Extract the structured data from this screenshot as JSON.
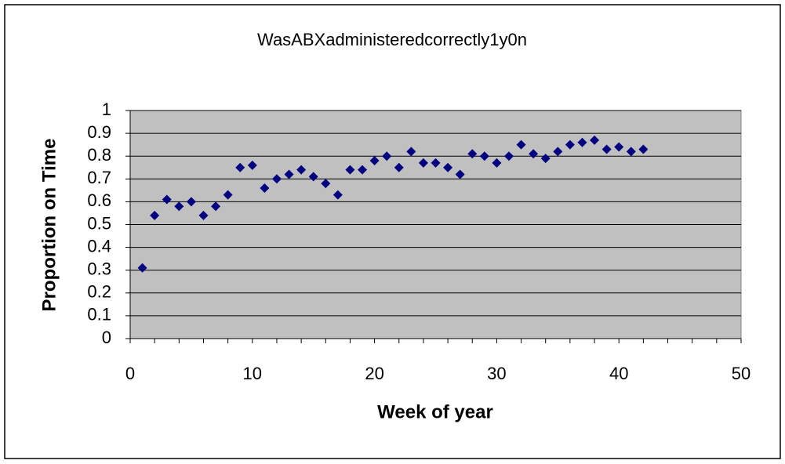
{
  "chart_data": {
    "type": "scatter",
    "title": "WasABXadministeredcorrectly1y0n",
    "x_label": "Week of year",
    "y_label": "Proportion on Time",
    "series": [
      {
        "color": "#000080",
        "x": [
          1,
          2,
          3,
          4,
          5,
          6,
          7,
          8,
          9,
          10,
          11,
          12,
          13,
          14,
          15,
          16,
          17,
          18,
          19,
          20,
          21,
          22,
          23,
          24,
          25,
          26,
          27,
          28,
          29,
          30,
          31,
          32,
          33,
          34,
          35,
          36,
          37,
          38,
          39,
          40,
          41,
          42
        ],
        "values": [
          0.31,
          0.54,
          0.61,
          0.58,
          0.6,
          0.54,
          0.58,
          0.63,
          0.75,
          0.76,
          0.66,
          0.7,
          0.72,
          0.74,
          0.71,
          0.68,
          0.63,
          0.74,
          0.74,
          0.78,
          0.8,
          0.75,
          0.82,
          0.77,
          0.77,
          0.75,
          0.72,
          0.81,
          0.8,
          0.77,
          0.8,
          0.85,
          0.81,
          0.79,
          0.82,
          0.85,
          0.86,
          0.87,
          0.83,
          0.84,
          0.82,
          0.83
        ]
      }
    ],
    "xlim": [
      0,
      50
    ],
    "xticks": [
      0,
      10,
      20,
      30,
      40,
      50
    ],
    "xminorticks": [
      2,
      4,
      6,
      8,
      12,
      14,
      16,
      18,
      22,
      24,
      26,
      28,
      32,
      34,
      36,
      38,
      42,
      44,
      46,
      48
    ],
    "ylim": [
      0,
      1
    ],
    "yticks": [
      0,
      0.1,
      0.2,
      0.3,
      0.4,
      0.5,
      0.6,
      0.7,
      0.8,
      0.9,
      1
    ],
    "grid": true,
    "plot_background": "#c0c0c0"
  }
}
